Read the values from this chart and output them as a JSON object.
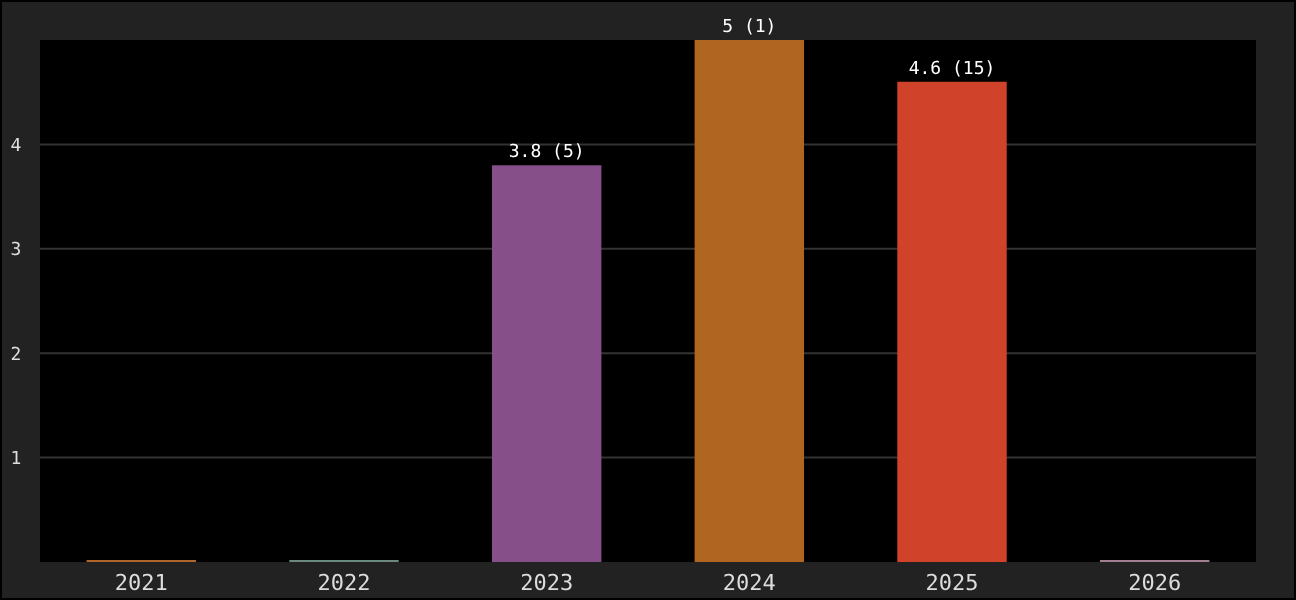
{
  "chart_data": {
    "type": "bar",
    "categories": [
      "2021",
      "2022",
      "2023",
      "2024",
      "2025",
      "2026"
    ],
    "values": [
      0,
      0,
      3.8,
      5,
      4.6,
      0
    ],
    "colors": [
      "#b0662a",
      "#6a8a80",
      "#874f8a",
      "#b06520",
      "#d04229",
      "#a08090"
    ],
    "value_labels": [
      null,
      null,
      "3.8 (5)",
      "5 (1)",
      "4.6 (15)",
      null
    ],
    "ylim": [
      0,
      5
    ],
    "yticks": [
      1,
      2,
      3,
      4
    ],
    "grid": "y"
  }
}
